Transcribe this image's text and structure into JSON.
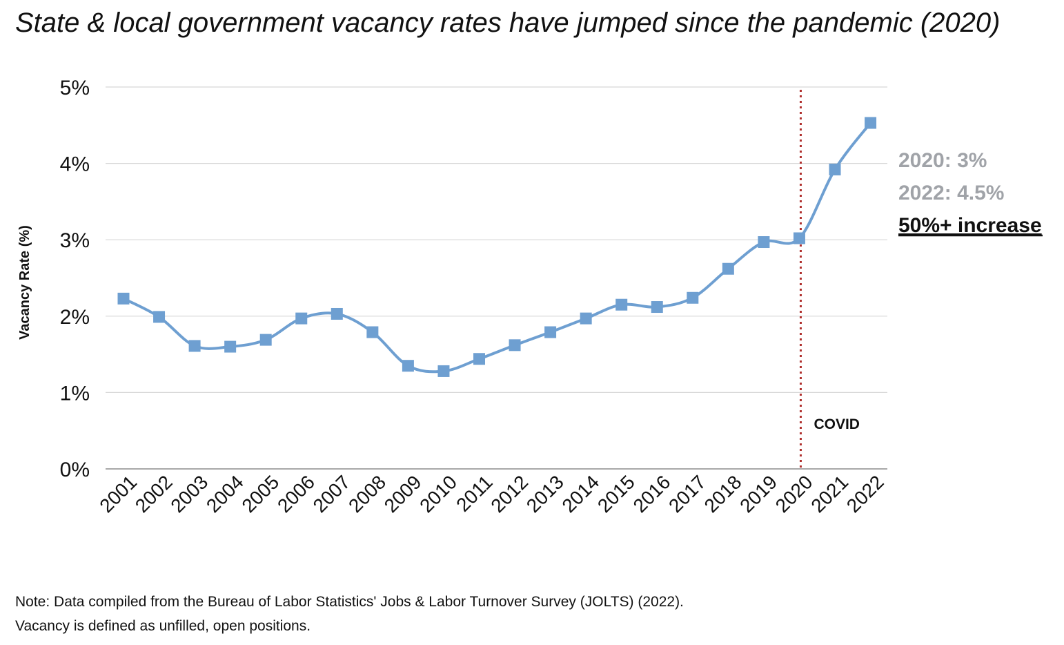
{
  "chart_data": {
    "type": "line",
    "title": "State & local government vacancy rates have jumped since the pandemic (2020)",
    "xlabel": "",
    "ylabel": "Vacancy Rate (%)",
    "categories": [
      "2001",
      "2002",
      "2003",
      "2004",
      "2005",
      "2006",
      "2007",
      "2008",
      "2009",
      "2010",
      "2011",
      "2012",
      "2013",
      "2014",
      "2015",
      "2016",
      "2017",
      "2018",
      "2019",
      "2020",
      "2021",
      "2022"
    ],
    "series": [
      {
        "values": [
          2.23,
          1.99,
          1.61,
          1.6,
          1.69,
          1.97,
          2.03,
          1.79,
          1.35,
          1.28,
          1.44,
          1.62,
          1.79,
          1.97,
          2.15,
          2.12,
          2.24,
          2.62,
          2.97,
          3.02,
          3.92,
          4.53
        ],
        "color": "#6e9fd1",
        "marker": "square",
        "smooth": true
      }
    ],
    "ylim": [
      0,
      5
    ],
    "yticks": [
      0,
      1,
      2,
      3,
      4,
      5
    ],
    "ytick_labels": [
      "0%",
      "1%",
      "2%",
      "3%",
      "4%",
      "5%"
    ],
    "grid": true,
    "legend": "none",
    "vline": {
      "at": "2020",
      "label": "COVID",
      "color": "#b0302e",
      "style": "dotted"
    },
    "annotations": {
      "line1": "2020: 3%",
      "line2": "2022: 4.5%",
      "line3": "50%+ increase",
      "gray_color": "#a0a3a8",
      "emphasis_color": "#111111"
    },
    "notes": [
      "Note: Data compiled from the Bureau of Labor Statistics' Jobs & Labor Turnover Survey (JOLTS) (2022).",
      "Vacancy is defined as unfilled, open positions."
    ]
  }
}
